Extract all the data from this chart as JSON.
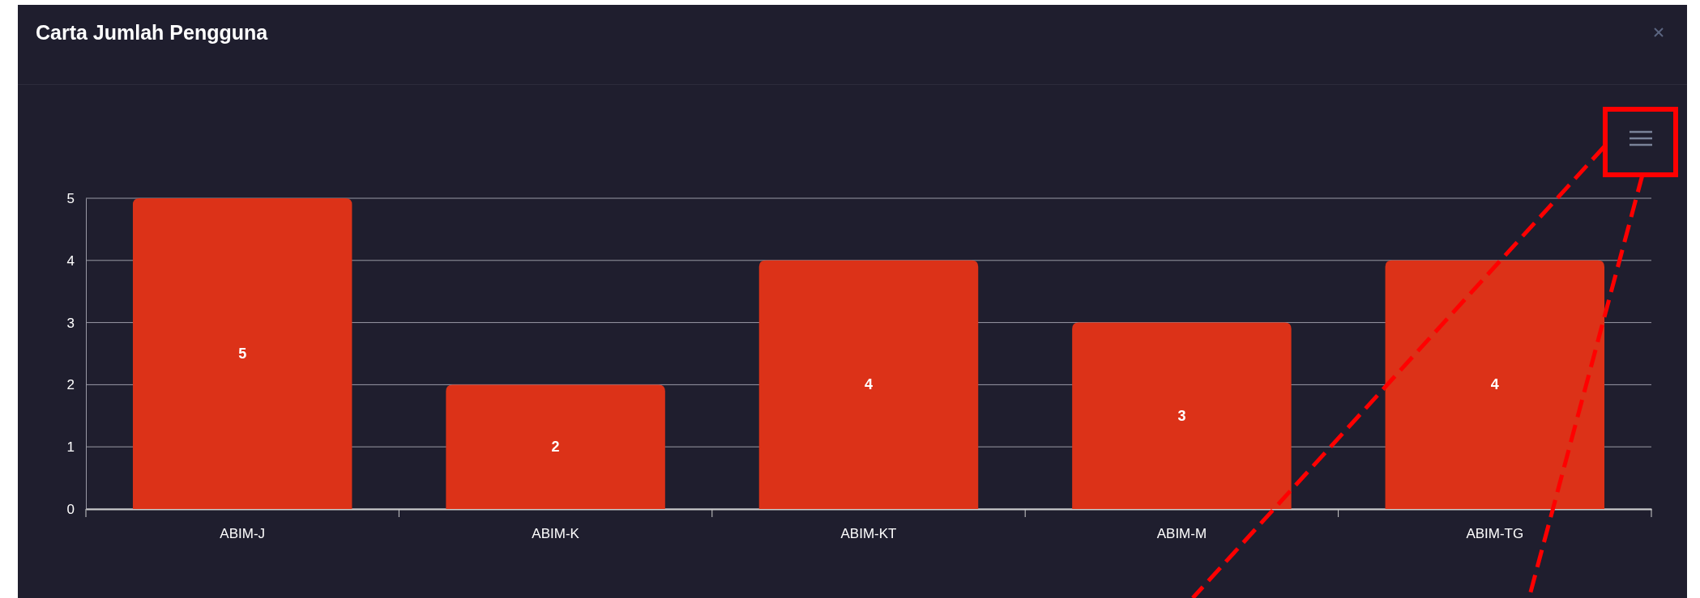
{
  "chart_data": {
    "type": "bar",
    "title": "Carta Jumlah Pengguna",
    "categories": [
      "ABIM-J",
      "ABIM-K",
      "ABIM-KT",
      "ABIM-M",
      "ABIM-TG"
    ],
    "values": [
      5,
      2,
      4,
      3,
      4
    ],
    "color": "#dc3218",
    "ylim": [
      0,
      5
    ],
    "yticks": [
      0,
      1,
      2,
      3,
      4,
      5
    ],
    "grid": "y",
    "data_labels": true
  }
}
